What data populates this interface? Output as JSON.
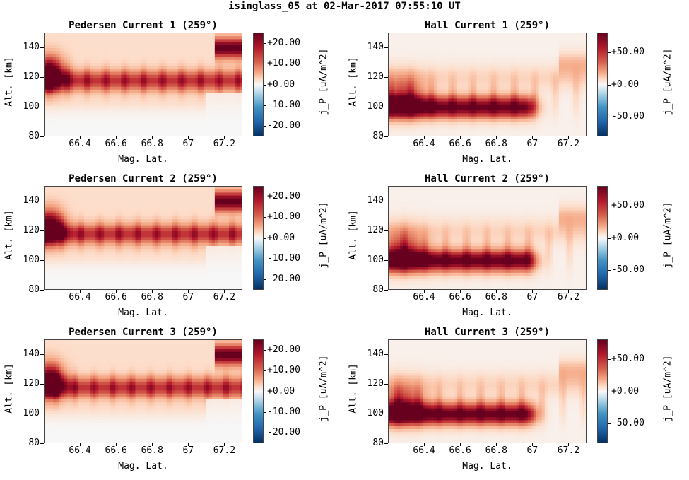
{
  "figure_title": "isinglass_05 at 02-Mar-2017 07:55:10 UT",
  "colorbar_label": "j_P [uA/m^2]",
  "colormap": [
    "#67001f",
    "#b2182b",
    "#d6604d",
    "#f4a582",
    "#fddbc7",
    "#f7f7f7",
    "#d1e5f0",
    "#92c5de",
    "#4393c3",
    "#2166ac",
    "#053061"
  ],
  "chart_data": [
    {
      "type": "heatmap",
      "title": "Pedersen Current 1 (259°)",
      "xlabel": "Mag. Lat.",
      "ylabel": "Alt. [km]",
      "xlim": [
        66.2,
        67.3
      ],
      "ylim": [
        80,
        150
      ],
      "xticks": [
        "66.4",
        "66.6",
        "66.8",
        "67",
        "67.2"
      ],
      "yticks": [
        "140",
        "120",
        "100",
        "80"
      ],
      "clim": [
        -25,
        25
      ],
      "cticks": [
        "+20.00",
        "+10.00",
        "+0.00",
        "-10.00",
        "-20.00"
      ],
      "colorbar_label": "j_P [uA/m^2]"
    },
    {
      "type": "heatmap",
      "title": "Hall Current 1 (259°)",
      "xlabel": "Mag. Lat.",
      "ylabel": "Alt. [km]",
      "xlim": [
        66.2,
        67.3
      ],
      "ylim": [
        80,
        150
      ],
      "xticks": [
        "66.4",
        "66.6",
        "66.8",
        "67",
        "67.2"
      ],
      "yticks": [
        "140",
        "120",
        "100",
        "80"
      ],
      "clim": [
        -80,
        80
      ],
      "cticks": [
        "+50.00",
        "+0.00",
        "-50.00"
      ],
      "colorbar_label": "j_P [uA/m^2]"
    },
    {
      "type": "heatmap",
      "title": "Pedersen Current 2 (259°)",
      "xlabel": "Mag. Lat.",
      "ylabel": "Alt. [km]",
      "xlim": [
        66.2,
        67.3
      ],
      "ylim": [
        80,
        150
      ],
      "xticks": [
        "66.4",
        "66.6",
        "66.8",
        "67",
        "67.2"
      ],
      "yticks": [
        "140",
        "120",
        "100",
        "80"
      ],
      "clim": [
        -25,
        25
      ],
      "cticks": [
        "+20.00",
        "+10.00",
        "+0.00",
        "-10.00",
        "-20.00"
      ],
      "colorbar_label": "j_P [uA/m^2]"
    },
    {
      "type": "heatmap",
      "title": "Hall Current 2 (259°)",
      "xlabel": "Mag. Lat.",
      "ylabel": "Alt. [km]",
      "xlim": [
        66.2,
        67.3
      ],
      "ylim": [
        80,
        150
      ],
      "xticks": [
        "66.4",
        "66.6",
        "66.8",
        "67",
        "67.2"
      ],
      "yticks": [
        "140",
        "120",
        "100",
        "80"
      ],
      "clim": [
        -80,
        80
      ],
      "cticks": [
        "+50.00",
        "+0.00",
        "-50.00"
      ],
      "colorbar_label": "j_P [uA/m^2]"
    },
    {
      "type": "heatmap",
      "title": "Pedersen Current 3 (259°)",
      "xlabel": "Mag. Lat.",
      "ylabel": "Alt. [km]",
      "xlim": [
        66.2,
        67.3
      ],
      "ylim": [
        80,
        150
      ],
      "xticks": [
        "66.4",
        "66.6",
        "66.8",
        "67",
        "67.2"
      ],
      "yticks": [
        "140",
        "120",
        "100",
        "80"
      ],
      "clim": [
        -25,
        25
      ],
      "cticks": [
        "+20.00",
        "+10.00",
        "+0.00",
        "-10.00",
        "-20.00"
      ],
      "colorbar_label": "j_P [uA/m^2]"
    },
    {
      "type": "heatmap",
      "title": "Hall Current 3 (259°)",
      "xlabel": "Mag. Lat.",
      "ylabel": "Alt. [km]",
      "xlim": [
        66.2,
        67.3
      ],
      "ylim": [
        80,
        150
      ],
      "xticks": [
        "66.4",
        "66.6",
        "66.8",
        "67",
        "67.2"
      ],
      "yticks": [
        "140",
        "120",
        "100",
        "80"
      ],
      "clim": [
        -80,
        80
      ],
      "cticks": [
        "+50.00",
        "+0.00",
        "-50.00"
      ],
      "colorbar_label": "j_P [uA/m^2]"
    }
  ]
}
